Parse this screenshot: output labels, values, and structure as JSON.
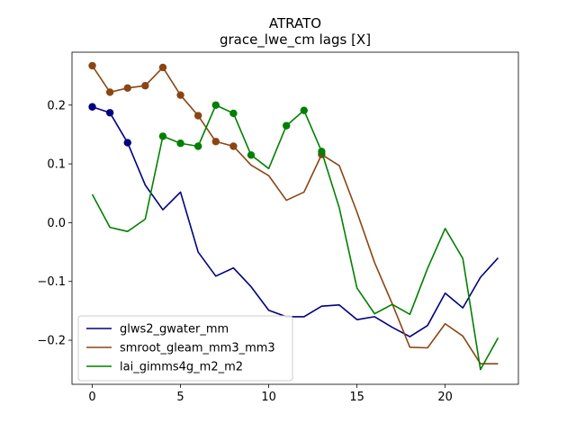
{
  "chart_data": {
    "type": "line",
    "title": "ATRATO",
    "subtitle": "grace_lwe_cm lags [X]",
    "xlabel": "",
    "ylabel": "",
    "xlim": [
      -1.15,
      24.15
    ],
    "ylim": [
      -0.275,
      0.29
    ],
    "xticks": [
      0,
      5,
      10,
      15,
      20
    ],
    "xtick_labels": [
      "0",
      "5",
      "10",
      "15",
      "20"
    ],
    "yticks": [
      -0.2,
      -0.1,
      0.0,
      0.1,
      0.2
    ],
    "ytick_labels": [
      "−0.2",
      "−0.1",
      "0.0",
      "0.1",
      "0.2"
    ],
    "grid": false,
    "legend_position": "lower-left",
    "x": [
      0,
      1,
      2,
      3,
      4,
      5,
      6,
      7,
      8,
      9,
      10,
      11,
      12,
      13,
      14,
      15,
      16,
      17,
      18,
      19,
      20,
      21,
      22,
      23
    ],
    "series": [
      {
        "name": "glws2_gwater_mm",
        "color": "#000080",
        "values": [
          0.197,
          0.187,
          0.136,
          0.064,
          0.022,
          0.052,
          -0.05,
          -0.091,
          -0.077,
          -0.109,
          -0.149,
          -0.16,
          -0.16,
          -0.142,
          -0.14,
          -0.165,
          -0.16,
          -0.178,
          -0.194,
          -0.175,
          -0.12,
          -0.145,
          -0.093,
          -0.06
        ],
        "markers": [
          0,
          1,
          2
        ]
      },
      {
        "name": "smroot_gleam_mm3_mm3",
        "color": "#8b4513",
        "values": [
          0.267,
          0.222,
          0.229,
          0.233,
          0.264,
          0.217,
          0.182,
          0.138,
          0.13,
          0.098,
          0.08,
          0.038,
          0.052,
          0.116,
          0.097,
          0.018,
          -0.068,
          -0.138,
          -0.212,
          -0.213,
          -0.172,
          -0.193,
          -0.24,
          -0.24
        ],
        "markers": [
          0,
          1,
          2,
          3,
          4,
          5,
          6,
          7,
          8,
          13
        ]
      },
      {
        "name": "lai_gimms4g_m2_m2",
        "color": "#008000",
        "values": [
          0.048,
          -0.008,
          -0.015,
          0.006,
          0.147,
          0.135,
          0.13,
          0.2,
          0.186,
          0.115,
          0.092,
          0.165,
          0.191,
          0.121,
          0.025,
          -0.111,
          -0.155,
          -0.139,
          -0.156,
          -0.078,
          -0.01,
          -0.061,
          -0.25,
          -0.196
        ],
        "markers": [
          4,
          5,
          6,
          7,
          8,
          9,
          11,
          12,
          13
        ]
      }
    ]
  }
}
